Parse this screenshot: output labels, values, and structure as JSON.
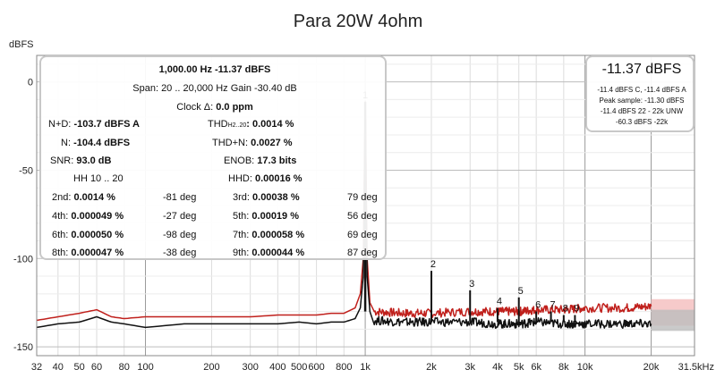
{
  "chart_data": {
    "type": "line",
    "title": "Para 20W 4ohm",
    "ylabel": "dBFS",
    "xlabel": "",
    "xscale": "log",
    "xlim": [
      32,
      31500
    ],
    "ylim": [
      -155,
      15
    ],
    "yticks": [
      {
        "value": 0,
        "label": "0"
      },
      {
        "value": -50,
        "label": "-50"
      },
      {
        "value": -100,
        "label": "-100"
      },
      {
        "value": -150,
        "label": "-150"
      }
    ],
    "xticks": [
      {
        "value": 32,
        "label": "32"
      },
      {
        "value": 40,
        "label": "40"
      },
      {
        "value": 50,
        "label": "50"
      },
      {
        "value": 60,
        "label": "60"
      },
      {
        "value": 80,
        "label": "80"
      },
      {
        "value": 100,
        "label": "100"
      },
      {
        "value": 200,
        "label": "200"
      },
      {
        "value": 300,
        "label": "300"
      },
      {
        "value": 400,
        "label": "400"
      },
      {
        "value": 500,
        "label": "500"
      },
      {
        "value": 600,
        "label": "600"
      },
      {
        "value": 800,
        "label": "800"
      },
      {
        "value": 1000,
        "label": "1k"
      },
      {
        "value": 2000,
        "label": "2k"
      },
      {
        "value": 3000,
        "label": "3k"
      },
      {
        "value": 4000,
        "label": "4k"
      },
      {
        "value": 5000,
        "label": "5k"
      },
      {
        "value": 6000,
        "label": "6k"
      },
      {
        "value": 8000,
        "label": "8k"
      },
      {
        "value": 10000,
        "label": "10k"
      },
      {
        "value": 20000,
        "label": "20k"
      },
      {
        "value": 31500,
        "label": "31.5kHz"
      }
    ],
    "grid": true,
    "series": [
      {
        "color": "#c0201c",
        "x": [
          32,
          40,
          50,
          60,
          70,
          80,
          100,
          150,
          200,
          300,
          400,
          500,
          600,
          700,
          800,
          900,
          950,
          980,
          1000,
          1020,
          1050,
          1100,
          1500,
          2000,
          3000,
          4000,
          5000,
          6000,
          8000,
          10000,
          15000,
          20000
        ],
        "y": [
          -135,
          -133,
          -131,
          -129,
          -133,
          -134,
          -133,
          -133,
          -133,
          -133,
          -132,
          -132,
          -132,
          -131,
          -131,
          -128,
          -120,
          -100,
          -11.37,
          -100,
          -125,
          -130,
          -131,
          -131,
          -130,
          -130,
          -130,
          -129,
          -129,
          -128,
          -128,
          -127
        ]
      },
      {
        "color": "#111111",
        "x": [
          32,
          40,
          50,
          60,
          70,
          80,
          100,
          150,
          200,
          300,
          400,
          500,
          600,
          700,
          800,
          900,
          950,
          980,
          1000,
          1020,
          1050,
          1100,
          1500,
          2000,
          3000,
          4000,
          5000,
          6000,
          8000,
          10000,
          15000,
          20000
        ],
        "y": [
          -139,
          -137,
          -136,
          -133,
          -136,
          -137,
          -139,
          -137,
          -137,
          -137,
          -137,
          -136,
          -137,
          -136,
          -136,
          -134,
          -128,
          -110,
          -11.37,
          -110,
          -130,
          -135,
          -136,
          -136,
          -136,
          -137,
          -137,
          -136,
          -137,
          -137,
          -137,
          -137
        ]
      }
    ],
    "harmonics": [
      {
        "label": "1",
        "freq": 1000,
        "db": -11.37
      },
      {
        "label": "2",
        "freq": 2000,
        "db": -107
      },
      {
        "label": "3",
        "freq": 3000,
        "db": -118
      },
      {
        "label": "4",
        "freq": 4000,
        "db": -128
      },
      {
        "label": "5",
        "freq": 5000,
        "db": -122
      },
      {
        "label": "6",
        "freq": 6000,
        "db": -130
      },
      {
        "label": "7",
        "freq": 7000,
        "db": -130
      },
      {
        "label": "8",
        "freq": 8000,
        "db": -132
      },
      {
        "label": "9",
        "freq": 9000,
        "db": -132
      }
    ]
  },
  "stats": {
    "fund": "1,000.00 Hz  -11.37 dBFS",
    "span": "Span: 20 .. 20,000 Hz   Gain -30.40 dB",
    "clock_label": "Clock Δ: ",
    "clock_value": "0.0 ppm",
    "nd_label": "N+D: ",
    "nd_value": "-103.7 dBFS A",
    "thd_label": "THD",
    "thd_sub": "H2..20",
    "thd_value": ": 0.0014 %",
    "n_label": "N: ",
    "n_value": "-104.4 dBFS",
    "thdn_label": "THD+N: ",
    "thdn_value": "0.0027 %",
    "snr_label": "SNR: ",
    "snr_value": "93.0 dB",
    "enob_label": "ENOB: ",
    "enob_value": "17.3 bits",
    "hh": "HH 10 .. 20",
    "hhd_label": "HHD: ",
    "hhd_value": "0.00016 %",
    "harm_rows": [
      {
        "l_label": "2nd: ",
        "l_value": "0.0014 %",
        "l_deg": "-81 deg",
        "r_label": "3rd: ",
        "r_value": "0.00038 %",
        "r_deg": "79 deg"
      },
      {
        "l_label": "4th: ",
        "l_value": "0.000049 %",
        "l_deg": "-27 deg",
        "r_label": "5th: ",
        "r_value": "0.00019 %",
        "r_deg": "56 deg"
      },
      {
        "l_label": "6th: ",
        "l_value": "0.000050 %",
        "l_deg": "-98 deg",
        "r_label": "7th: ",
        "r_value": "0.000058 %",
        "r_deg": "69 deg"
      },
      {
        "l_label": "8th: ",
        "l_value": "0.000047 %",
        "l_deg": "-38 deg",
        "r_label": "9th: ",
        "r_value": "0.000044 %",
        "r_deg": "87 deg"
      }
    ]
  },
  "level": {
    "main": "-11.37 dBFS",
    "line1": "-11.4 dBFS C, -11.4 dBFS A",
    "line2": "Peak sample: -11.30 dBFS",
    "line3": "-11.4 dBFS 22 - 22k UNW",
    "line4": "-60.3 dBFS -22k"
  }
}
